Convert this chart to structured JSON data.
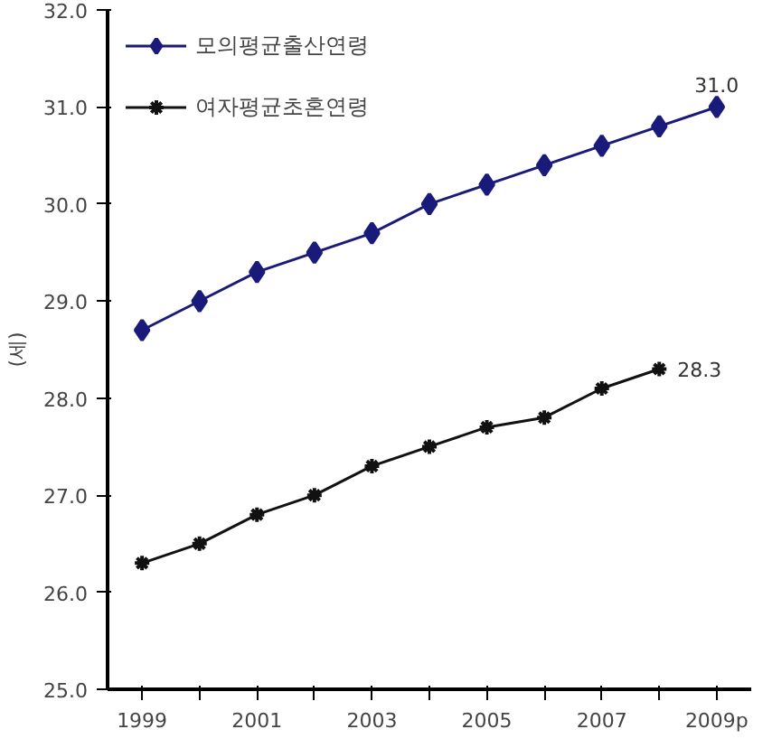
{
  "chart_data": {
    "type": "line",
    "ylabel": "(세)",
    "categories": [
      "1999",
      null,
      "2001",
      null,
      "2003",
      null,
      "2005",
      null,
      "2007",
      null,
      "2009p"
    ],
    "series": [
      {
        "name": "모의평균출산연령",
        "color": "#1a1a7a",
        "marker": "diamond",
        "values": [
          28.7,
          29.0,
          29.3,
          29.5,
          29.7,
          30.0,
          30.2,
          30.4,
          30.6,
          30.8,
          31.0
        ],
        "value_labels": [
          null,
          null,
          null,
          null,
          null,
          null,
          null,
          null,
          null,
          null,
          "31.0"
        ]
      },
      {
        "name": "여자평균초혼연령",
        "color": "#111111",
        "marker": "cross",
        "values": [
          26.3,
          26.5,
          26.8,
          27.0,
          27.3,
          27.5,
          27.7,
          27.8,
          28.1,
          28.3,
          null
        ],
        "value_labels": [
          null,
          null,
          null,
          null,
          null,
          null,
          null,
          null,
          null,
          "28.3",
          null
        ]
      }
    ],
    "ylim": [
      25,
      32
    ],
    "yticks": [
      {
        "value": 25,
        "label": "25.0"
      },
      {
        "value": 26,
        "label": "26.0"
      },
      {
        "value": 27,
        "label": "27.0"
      },
      {
        "value": 28,
        "label": "28.0"
      },
      {
        "value": 29,
        "label": "29.0"
      },
      {
        "value": 30,
        "label": "30.0"
      },
      {
        "value": 31,
        "label": "31.0"
      },
      {
        "value": 32,
        "label": "32.0"
      }
    ],
    "grid": false,
    "legend": "top left",
    "line_style": "solid"
  }
}
